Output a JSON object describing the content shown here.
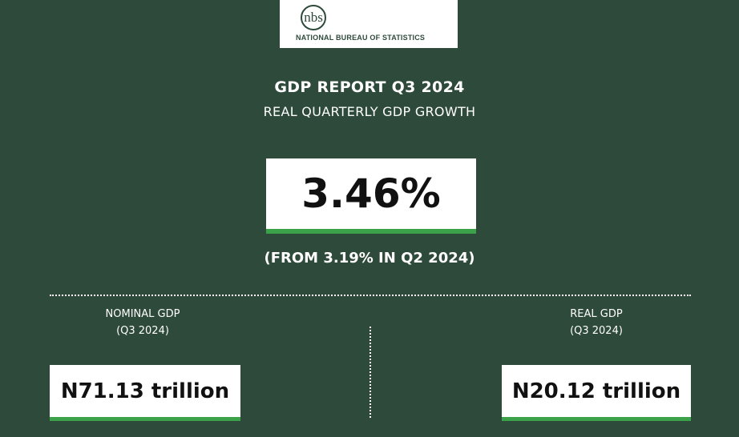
{
  "logo": {
    "org_name": "NATIONAL BUREAU OF STATISTICS",
    "mark_text": "nbs"
  },
  "report": {
    "title": "GDP REPORT Q3 2024",
    "subtitle": "REAL QUARTERLY GDP GROWTH",
    "growth_value": "3.46%",
    "growth_note": "(FROM 3.19% IN Q2 2024)"
  },
  "nominal": {
    "label": "NOMINAL GDP",
    "period": "(Q3 2024)",
    "value": "N71.13 trillion"
  },
  "real": {
    "label": "REAL GDP",
    "period": "(Q3 2024)",
    "value": "N20.12 trillion"
  },
  "colors": {
    "background": "#2e4a3b",
    "accent_green": "#3ba24a",
    "box_white": "#ffffff"
  }
}
